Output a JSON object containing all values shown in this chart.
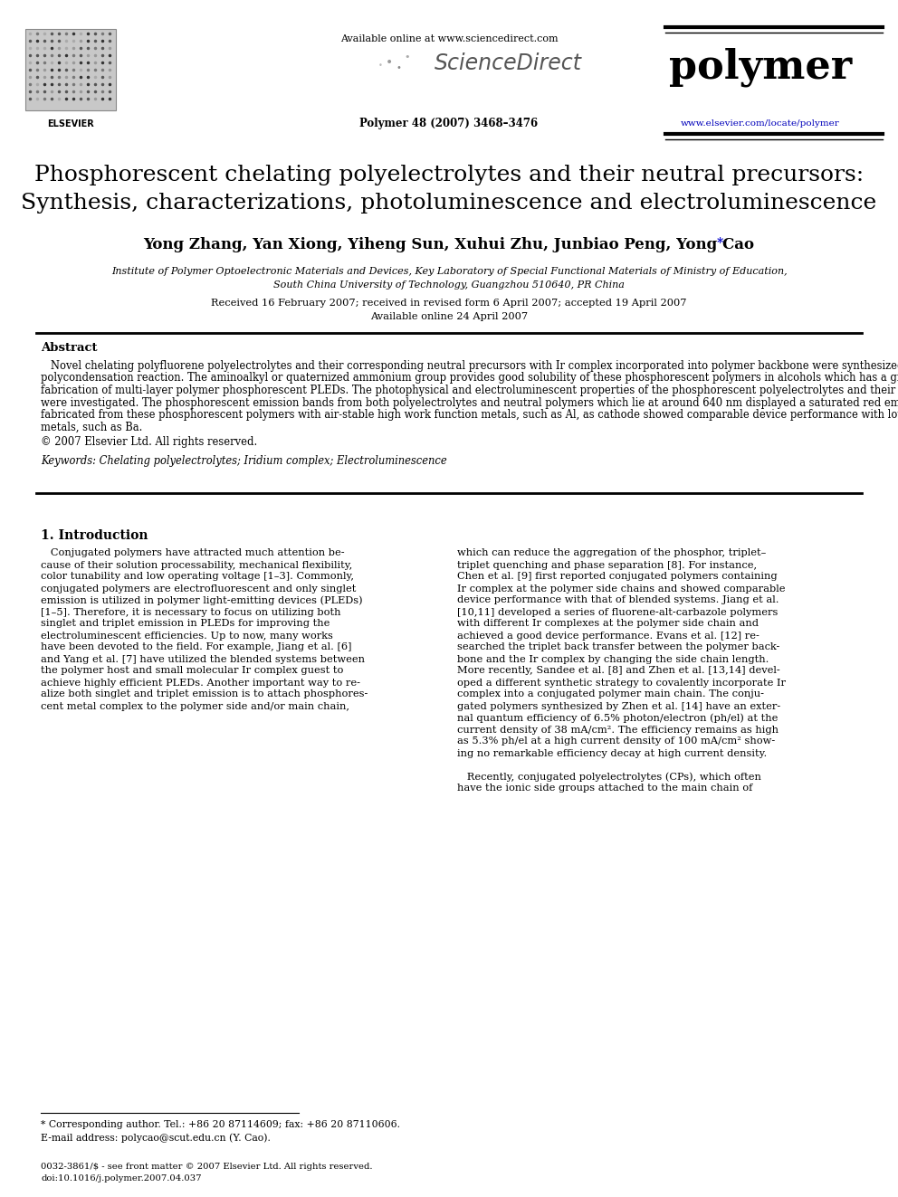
{
  "bg_color": "#ffffff",
  "header_available": "Available online at www.sciencedirect.com",
  "header_sd": "ScienceDirect",
  "header_issue": "Polymer 48 (2007) 3468–3476",
  "header_journal": "polymer",
  "header_url": "www.elsevier.com/locate/polymer",
  "title_line1": "Phosphorescent chelating polyelectrolytes and their neutral precursors:",
  "title_line2": "Synthesis, characterizations, photoluminescence and electroluminescence",
  "authors_main": "Yong Zhang, Yan Xiong, Yiheng Sun, Xuhui Zhu, Junbiao Peng, Yong Cao",
  "affiliation1": "Institute of Polymer Optoelectronic Materials and Devices, Key Laboratory of Special Functional Materials of Ministry of Education,",
  "affiliation2": "South China University of Technology, Guangzhou 510640, PR China",
  "received": "Received 16 February 2007; received in revised form 6 April 2007; accepted 19 April 2007",
  "available": "Available online 24 April 2007",
  "abstract_title": "Abstract",
  "abstract_lines": [
    "   Novel chelating polyfluorene polyelectrolytes and their corresponding neutral precursors with Ir complex incorporated into polymer backbone were synthesized by Suzuki",
    "polycondensation reaction. The aminoalkyl or quaternized ammonium group provides good solubility of these phosphorescent polymers in alcohols which has a great advantage in",
    "fabrication of multi-layer polymer phosphorescent PLEDs. The photophysical and electroluminescent properties of the phosphorescent polyelectrolytes and their neutral precursors",
    "were investigated. The phosphorescent emission bands from both polyelectrolytes and neutral polymers which lie at around 640 nm displayed a saturated red emission. Devices",
    "fabricated from these phosphorescent polymers with air-stable high work function metals, such as Al, as cathode showed comparable device performance with low work function",
    "metals, such as Ba."
  ],
  "copyright": "© 2007 Elsevier Ltd. All rights reserved.",
  "keywords": "Keywords: Chelating polyelectrolytes; Iridium complex; Electroluminescence",
  "section1_title": "1. Introduction",
  "col1_lines": [
    "   Conjugated polymers have attracted much attention be-",
    "cause of their solution processability, mechanical flexibility,",
    "color tunability and low operating voltage [1–3]. Commonly,",
    "conjugated polymers are electrofluorescent and only singlet",
    "emission is utilized in polymer light-emitting devices (PLEDs)",
    "[1–5]. Therefore, it is necessary to focus on utilizing both",
    "singlet and triplet emission in PLEDs for improving the",
    "electroluminescent efficiencies. Up to now, many works",
    "have been devoted to the field. For example, Jiang et al. [6]",
    "and Yang et al. [7] have utilized the blended systems between",
    "the polymer host and small molecular Ir complex guest to",
    "achieve highly efficient PLEDs. Another important way to re-",
    "alize both singlet and triplet emission is to attach phosphores-",
    "cent metal complex to the polymer side and/or main chain,"
  ],
  "col2_lines": [
    "which can reduce the aggregation of the phosphor, triplet–",
    "triplet quenching and phase separation [8]. For instance,",
    "Chen et al. [9] first reported conjugated polymers containing",
    "Ir complex at the polymer side chains and showed comparable",
    "device performance with that of blended systems. Jiang et al.",
    "[10,11] developed a series of fluorene-alt-carbazole polymers",
    "with different Ir complexes at the polymer side chain and",
    "achieved a good device performance. Evans et al. [12] re-",
    "searched the triplet back transfer between the polymer back-",
    "bone and the Ir complex by changing the side chain length.",
    "More recently, Sandee et al. [8] and Zhen et al. [13,14] devel-",
    "oped a different synthetic strategy to covalently incorporate Ir",
    "complex into a conjugated polymer main chain. The conju-",
    "gated polymers synthesized by Zhen et al. [14] have an exter-",
    "nal quantum efficiency of 6.5% photon/electron (ph/el) at the",
    "current density of 38 mA/cm². The efficiency remains as high",
    "as 5.3% ph/el at a high current density of 100 mA/cm² show-",
    "ing no remarkable efficiency decay at high current density.",
    "",
    "   Recently, conjugated polyelectrolytes (CPs), which often",
    "have the ionic side groups attached to the main chain of"
  ],
  "footnote_line": "* Corresponding author. Tel.: +86 20 87114609; fax: +86 20 87110606.",
  "footnote_email": "E-mail address: polycao@scut.edu.cn (Y. Cao).",
  "footer_issn": "0032-3861/$ - see front matter © 2007 Elsevier Ltd. All rights reserved.",
  "footer_doi": "doi:10.1016/j.polymer.2007.04.037",
  "elsevier_text": "ELSEVIER"
}
